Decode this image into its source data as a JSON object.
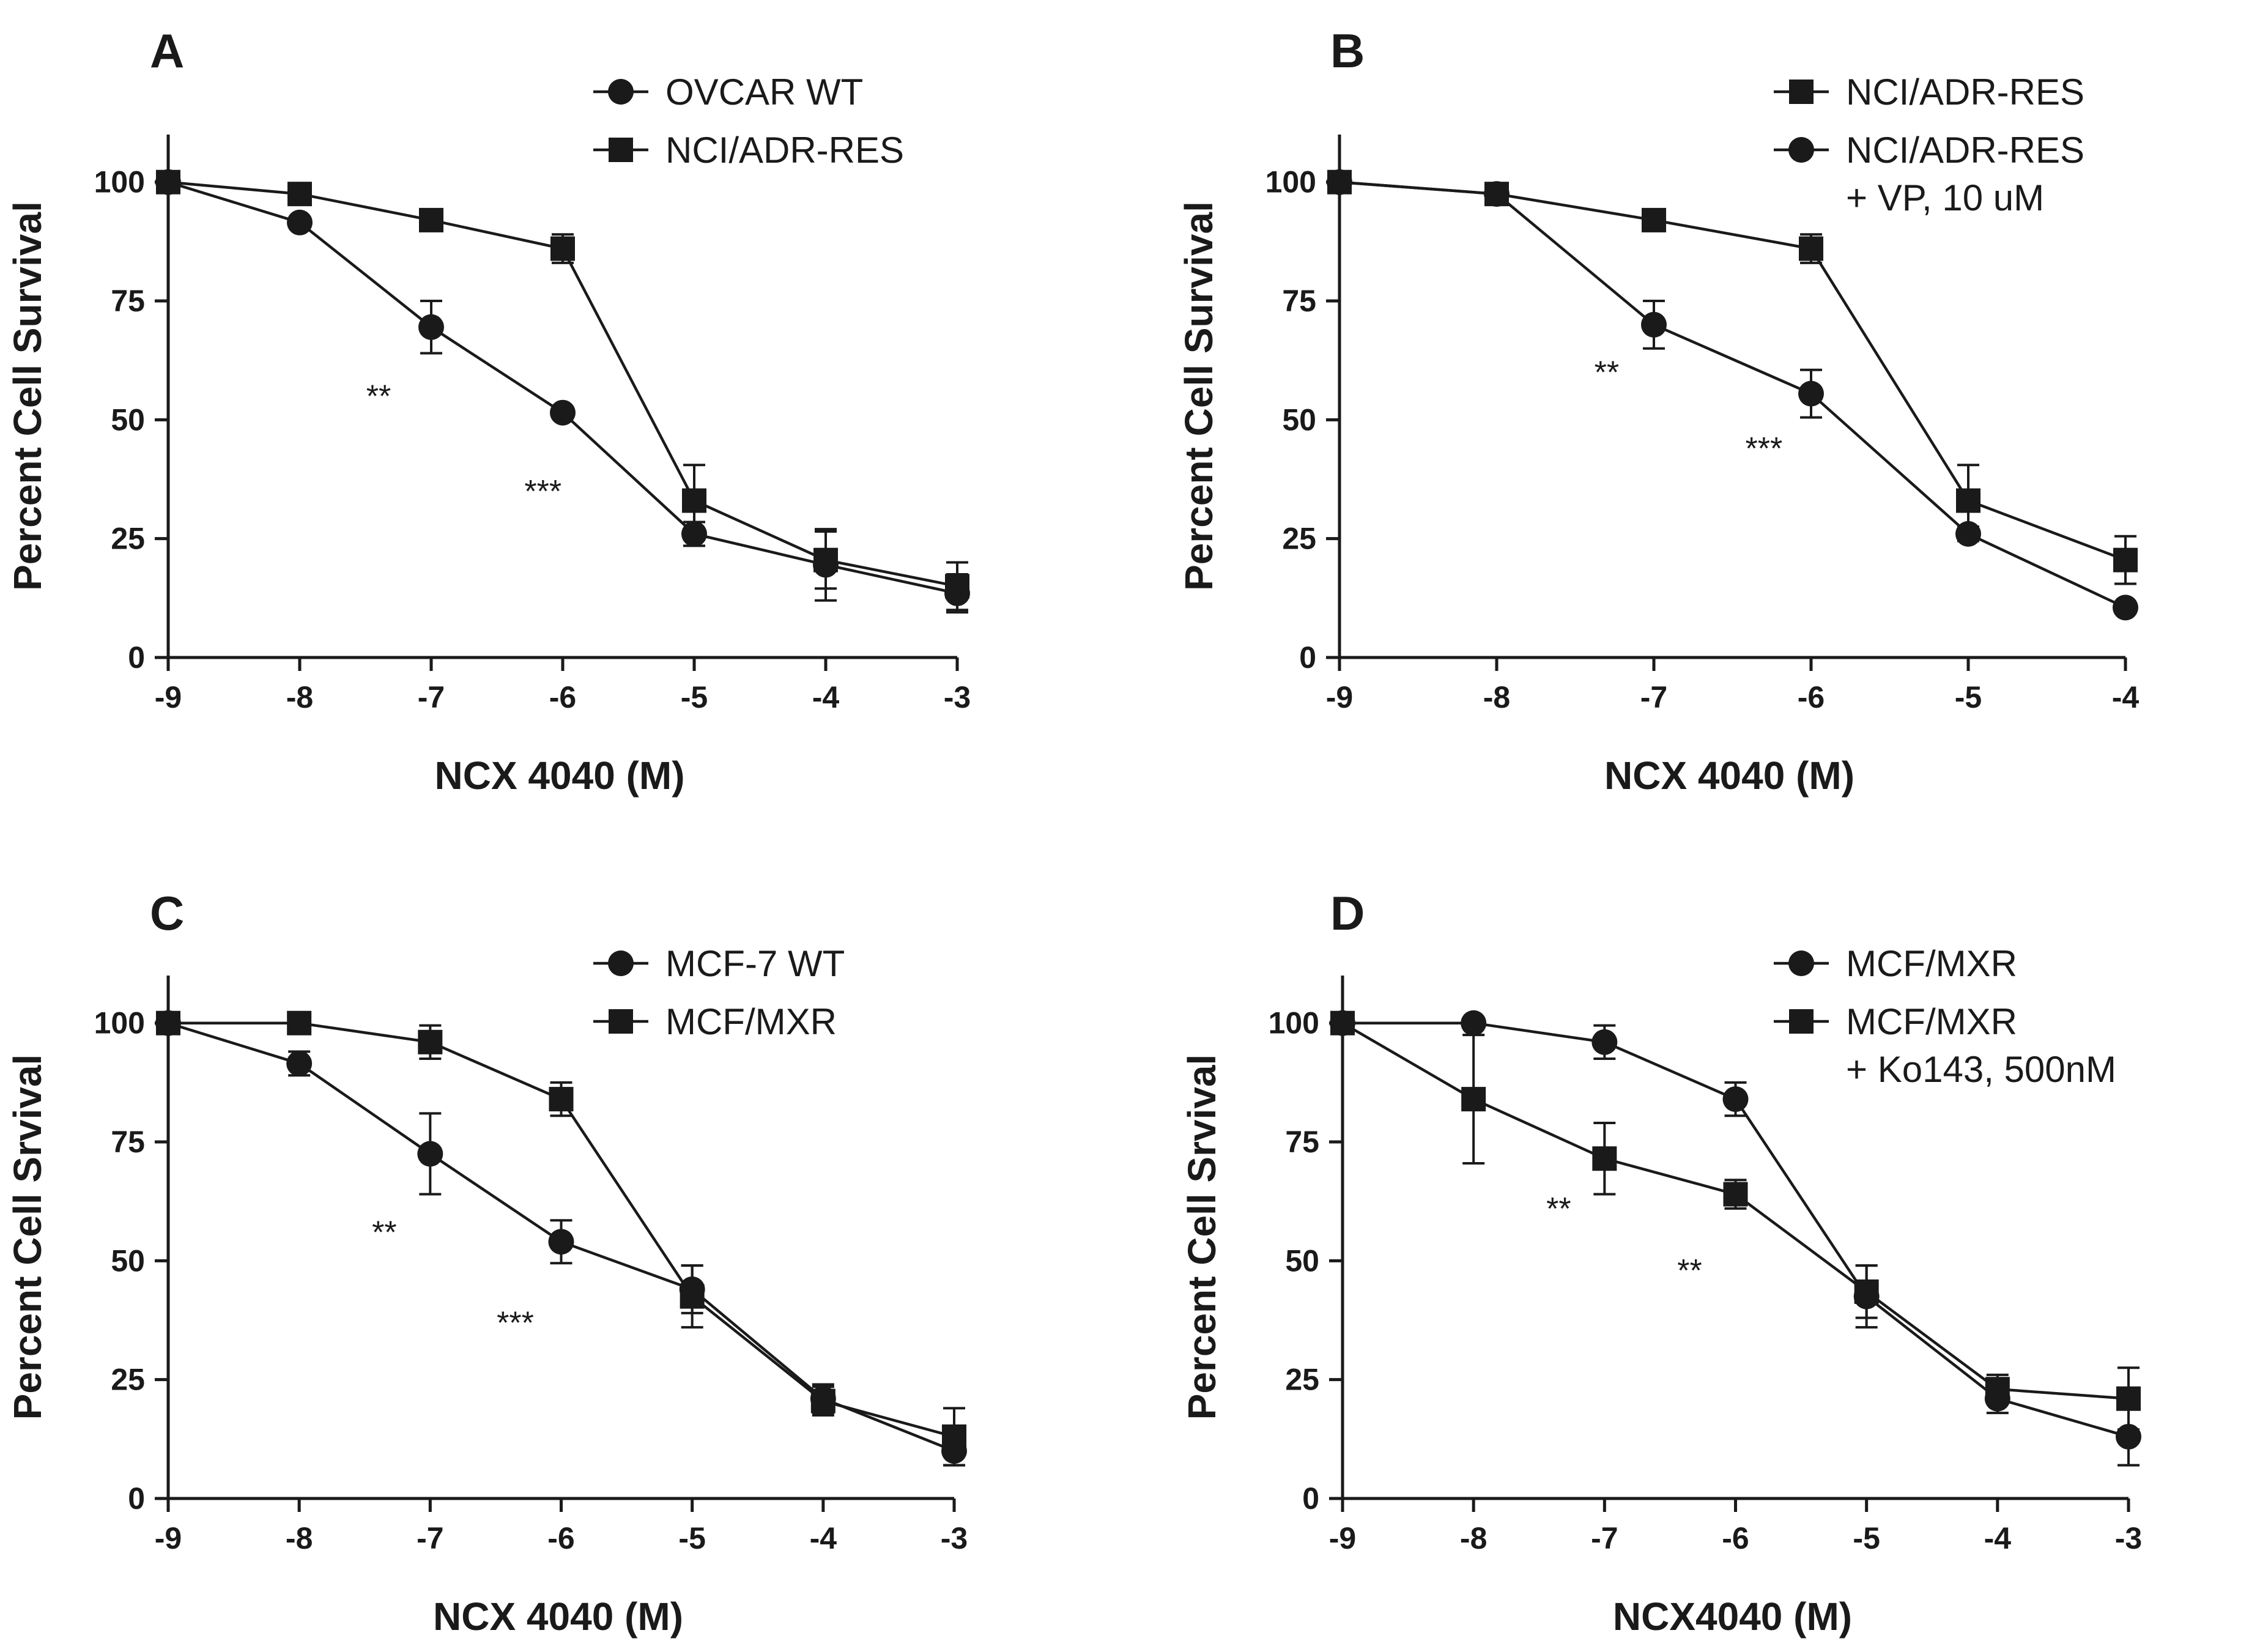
{
  "colors": {
    "ink": "#1a1a1a",
    "background": "#ffffff"
  },
  "chart_data": [
    {
      "panel": "A",
      "type": "line",
      "xlabel": "NCX 4040 (M)",
      "ylabel": "Percent Cell Survival",
      "xlim": [
        -9,
        -3
      ],
      "ylim": [
        0,
        110
      ],
      "xticks": [
        -9,
        -8,
        -7,
        -6,
        -5,
        -4,
        -3
      ],
      "yticks": [
        0,
        25,
        50,
        75,
        100
      ],
      "legend_position": "top-right",
      "series": [
        {
          "name": "OVCAR WT",
          "marker": "circle",
          "x": [
            -9,
            -8,
            -7,
            -6,
            -5,
            -4,
            -3
          ],
          "values": [
            100,
            91.5,
            69.5,
            51.5,
            26,
            19.5,
            13.5
          ],
          "errors": [
            0,
            1,
            5.5,
            0.5,
            2.5,
            7.5,
            4
          ]
        },
        {
          "name": "NCI/ADR-RES",
          "marker": "square",
          "x": [
            -9,
            -8,
            -7,
            -6,
            -5,
            -4,
            -3
          ],
          "values": [
            100,
            97.5,
            92,
            86,
            33,
            20.5,
            15
          ],
          "errors": [
            0,
            1.5,
            0.5,
            3,
            7.5,
            6,
            5
          ]
        }
      ],
      "annotations": [
        {
          "text": "**",
          "x": -7.4,
          "y": 55
        },
        {
          "text": "***",
          "x": -6.15,
          "y": 35
        }
      ]
    },
    {
      "panel": "B",
      "type": "line",
      "xlabel": "NCX 4040 (M)",
      "ylabel": "Percent Cell Survival",
      "xlim": [
        -9,
        -4
      ],
      "ylim": [
        0,
        110
      ],
      "xticks": [
        -9,
        -8,
        -7,
        -6,
        -5,
        -4
      ],
      "yticks": [
        0,
        25,
        50,
        75,
        100
      ],
      "legend_position": "top-right",
      "series": [
        {
          "name": "NCI/ADR-RES",
          "marker": "square",
          "x": [
            -9,
            -8,
            -7,
            -6,
            -5,
            -4
          ],
          "values": [
            100,
            97.5,
            92,
            86,
            33,
            20.5
          ],
          "errors": [
            0,
            1.5,
            0.5,
            3,
            7.5,
            5
          ]
        },
        {
          "name": "NCI/ADR-RES\n+ VP, 10 uM",
          "name_lines": [
            "NCI/ADR-RES",
            "+ VP, 10 uM"
          ],
          "marker": "circle",
          "x": [
            -9,
            -8,
            -7,
            -6,
            -5,
            -4
          ],
          "values": [
            100,
            97.5,
            70,
            55.5,
            26,
            10.5
          ],
          "errors": [
            0,
            1,
            5,
            5,
            1.5,
            0
          ]
        }
      ],
      "annotations": [
        {
          "text": "**",
          "x": -7.3,
          "y": 60
        },
        {
          "text": "***",
          "x": -6.3,
          "y": 44
        }
      ]
    },
    {
      "panel": "C",
      "type": "line",
      "xlabel": "NCX 4040 (M)",
      "ylabel": "Percent Cell Srvival",
      "xlim": [
        -9,
        -3
      ],
      "ylim": [
        0,
        110
      ],
      "xticks": [
        -9,
        -8,
        -7,
        -6,
        -5,
        -4,
        -3
      ],
      "yticks": [
        0,
        25,
        50,
        75,
        100
      ],
      "legend_position": "top-right",
      "series": [
        {
          "name": "MCF-7 WT",
          "marker": "circle",
          "x": [
            -9,
            -8,
            -7,
            -6,
            -5,
            -4,
            -3
          ],
          "values": [
            100,
            91.5,
            72.5,
            54,
            44,
            21,
            10
          ],
          "errors": [
            0,
            2.5,
            8.5,
            4.5,
            5,
            3,
            3
          ]
        },
        {
          "name": "MCF/MXR",
          "marker": "square",
          "x": [
            -9,
            -8,
            -7,
            -6,
            -5,
            -4,
            -3
          ],
          "values": [
            100,
            100,
            96,
            84,
            42.5,
            20.5,
            13
          ],
          "errors": [
            0,
            0.5,
            3.5,
            3.5,
            6.5,
            3,
            6
          ]
        }
      ],
      "annotations": [
        {
          "text": "**",
          "x": -7.35,
          "y": 56
        },
        {
          "text": "***",
          "x": -6.35,
          "y": 37
        }
      ]
    },
    {
      "panel": "D",
      "type": "line",
      "xlabel": "NCX4040 (M)",
      "ylabel": "Percent Cell Srvival",
      "xlim": [
        -9,
        -3
      ],
      "ylim": [
        0,
        110
      ],
      "xticks": [
        -9,
        -8,
        -7,
        -6,
        -5,
        -4,
        -3
      ],
      "yticks": [
        0,
        25,
        50,
        75,
        100
      ],
      "legend_position": "top-right",
      "series": [
        {
          "name": "MCF/MXR",
          "marker": "circle",
          "x": [
            -9,
            -8,
            -7,
            -6,
            -5,
            -4,
            -3
          ],
          "values": [
            100,
            100,
            96,
            84,
            42.5,
            21,
            13
          ],
          "errors": [
            0,
            0.5,
            3.5,
            3.5,
            6.5,
            3,
            6
          ]
        },
        {
          "name": "MCF/MXR\n+ Ko143, 500nM",
          "name_lines": [
            "MCF/MXR",
            "+ Ko143, 500nM"
          ],
          "marker": "square",
          "x": [
            -9,
            -8,
            -7,
            -6,
            -5,
            -4,
            -3
          ],
          "values": [
            100,
            84,
            71.5,
            64,
            43.5,
            23,
            21
          ],
          "errors": [
            0,
            13.5,
            7.5,
            3,
            5.5,
            3,
            6.5
          ]
        }
      ],
      "annotations": [
        {
          "text": "**",
          "x": -7.35,
          "y": 61
        },
        {
          "text": "**",
          "x": -6.35,
          "y": 48
        }
      ]
    }
  ]
}
